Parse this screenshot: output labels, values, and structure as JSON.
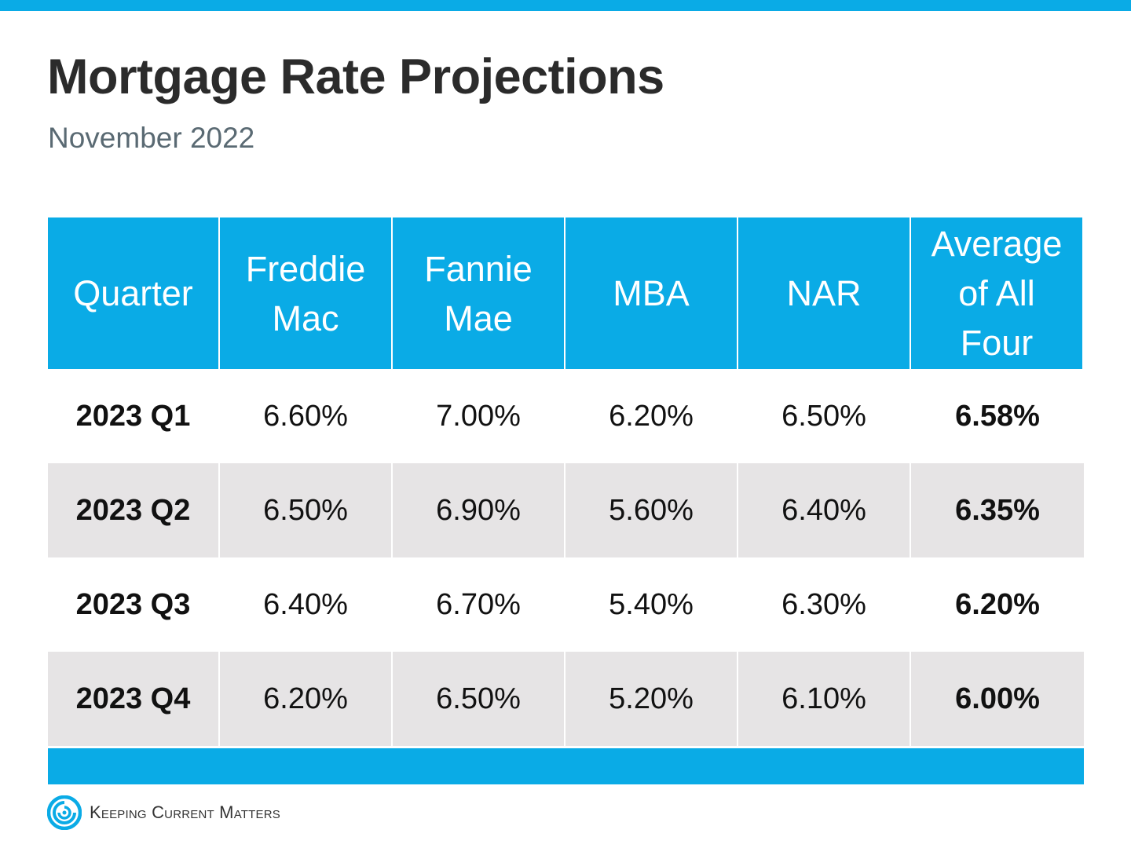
{
  "header": {
    "title": "Mortgage Rate Projections",
    "subtitle": "November 2022"
  },
  "table": {
    "columns": [
      {
        "lines": [
          "Quarter"
        ]
      },
      {
        "lines": [
          "Freddie",
          "Mac"
        ]
      },
      {
        "lines": [
          "Fannie",
          "Mae"
        ]
      },
      {
        "lines": [
          "MBA"
        ]
      },
      {
        "lines": [
          "NAR"
        ]
      },
      {
        "lines": [
          "Average",
          "of All",
          "Four"
        ]
      }
    ],
    "rows": [
      {
        "quarter": "2023 Q1",
        "freddie_mac": "6.60%",
        "fannie_mae": "7.00%",
        "mba": "6.20%",
        "nar": "6.50%",
        "average": "6.58%"
      },
      {
        "quarter": "2023 Q2",
        "freddie_mac": "6.50%",
        "fannie_mae": "6.90%",
        "mba": "5.60%",
        "nar": "6.40%",
        "average": "6.35%"
      },
      {
        "quarter": "2023 Q3",
        "freddie_mac": "6.40%",
        "fannie_mae": "6.70%",
        "mba": "5.40%",
        "nar": "6.30%",
        "average": "6.20%"
      },
      {
        "quarter": "2023 Q4",
        "freddie_mac": "6.20%",
        "fannie_mae": "6.50%",
        "mba": "5.20%",
        "nar": "6.10%",
        "average": "6.00%"
      }
    ]
  },
  "footer": {
    "brand": "Keeping Current Matters",
    "logo_icon": "kcm-swirl-logo-icon"
  },
  "colors": {
    "accent": "#0aabe6",
    "row_shade": "#e6e4e5",
    "title": "#2b2b2b",
    "subtitle": "#5a6a73"
  }
}
